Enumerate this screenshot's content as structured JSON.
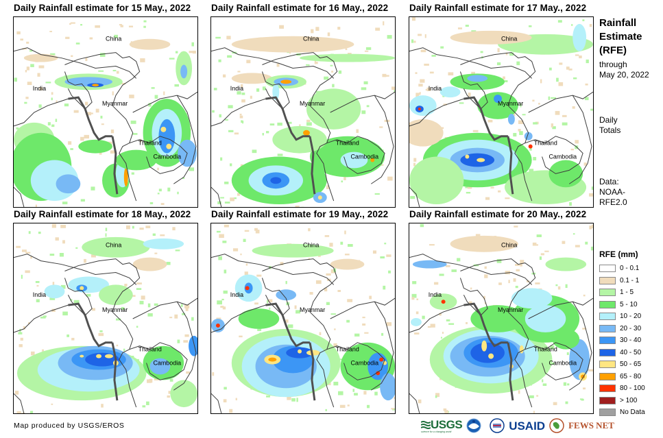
{
  "panels": [
    {
      "title": "Daily Rainfall estimate for 15 May., 2022",
      "date": "15 May., 2022"
    },
    {
      "title": "Daily Rainfall estimate for 16 May., 2022",
      "date": "16 May., 2022"
    },
    {
      "title": "Daily Rainfall estimate for 17 May., 2022",
      "date": "17 May., 2022"
    },
    {
      "title": "Daily Rainfall estimate for 18 May., 2022",
      "date": "18 May., 2022"
    },
    {
      "title": "Daily Rainfall estimate for 19 May., 2022",
      "date": "19 May., 2022"
    },
    {
      "title": "Daily Rainfall estimate for 20 May., 2022",
      "date": "20 May., 2022"
    }
  ],
  "country_labels": {
    "china": "China",
    "india": "India",
    "myanmar": "Myanmar",
    "thailand": "Thailand",
    "cambodia": "Cambodia"
  },
  "sidebar": {
    "title_line1": "Rainfall",
    "title_line2": "Estimate",
    "title_line3": "(RFE)",
    "through_label": "through",
    "through_date": "May 20, 2022",
    "totals_line1": "Daily",
    "totals_line2": "Totals",
    "data_line1": "Data:",
    "data_line2": "NOAA-",
    "data_line3": "RFE2.0"
  },
  "legend": {
    "title": "RFE (mm)",
    "items": [
      {
        "label": "0 - 0.1",
        "color": "#ffffff"
      },
      {
        "label": "0.1 - 1",
        "color": "#f0dcbc"
      },
      {
        "label": "1 - 5",
        "color": "#b4f5a5"
      },
      {
        "label": "5 - 10",
        "color": "#6ee86a"
      },
      {
        "label": "10 - 20",
        "color": "#b4f0fa"
      },
      {
        "label": "20 - 30",
        "color": "#78b9f5"
      },
      {
        "label": "30 - 40",
        "color": "#3c96f5"
      },
      {
        "label": "40 - 50",
        "color": "#1e64e6"
      },
      {
        "label": "50 - 65",
        "color": "#ffe682"
      },
      {
        "label": "65 - 80",
        "color": "#ffa000"
      },
      {
        "label": "80 - 100",
        "color": "#ff3200"
      },
      {
        "label": "> 100",
        "color": "#a01e1e"
      },
      {
        "label": "No Data",
        "color": "#a0a0a0"
      }
    ]
  },
  "footer": {
    "credit": "Map produced by USGS/EROS",
    "logos": {
      "usgs": "USGS",
      "usgs_tagline": "science for a changing world",
      "noaa": "NOAA",
      "usaid": "USAID",
      "usaid_tagline": "FROM THE AMERICAN PEOPLE",
      "fews": "FEWS NET"
    }
  }
}
